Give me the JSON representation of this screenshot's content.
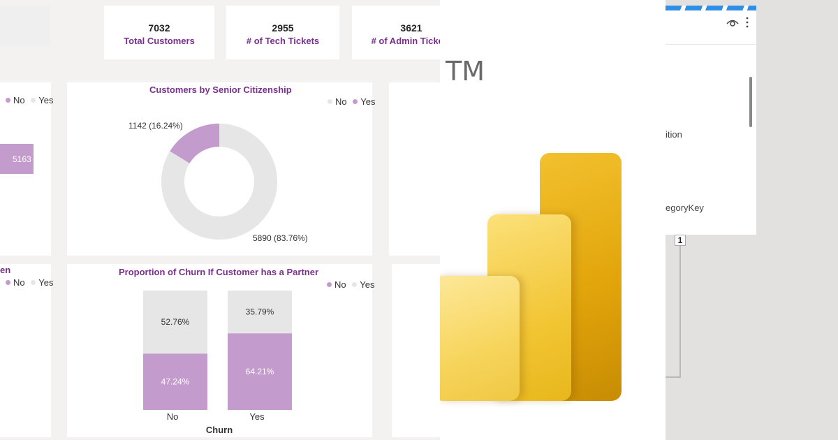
{
  "colors": {
    "yes": "#c39bcc",
    "no": "#e6e6e6",
    "accent": "#7b2f8e",
    "logo_dark": "#e0ad06",
    "logo_mid": "#f5c518",
    "logo_light": "#fbe17a"
  },
  "kpis": [
    {
      "value": "7032",
      "label": "Total Customers"
    },
    {
      "value": "2955",
      "label": "# of Tech Tickets"
    },
    {
      "value": "3621",
      "label": "# of Admin Tickets"
    }
  ],
  "left_top": {
    "legend": [
      {
        "label": "No",
        "color": "#c39bcc"
      },
      {
        "label": "Yes",
        "color": "#e6e6e6"
      }
    ],
    "bar_label": "5163"
  },
  "left_bottom": {
    "title_fragment": "en",
    "legend": [
      {
        "label": "No",
        "color": "#c39bcc"
      },
      {
        "label": "Yes",
        "color": "#e6e6e6"
      }
    ]
  },
  "senior": {
    "title": "Customers by Senior Citizenship",
    "legend": [
      {
        "label": "No",
        "color": "#e6e6e6"
      },
      {
        "label": "Yes",
        "color": "#c39bcc"
      }
    ],
    "chart_data": {
      "type": "pie",
      "title": "Customers by Senior Citizenship",
      "slices": [
        {
          "name": "Yes",
          "value": 1142,
          "percent": 16.24,
          "label": "1142 (16.24%)",
          "color": "#c39bcc"
        },
        {
          "name": "No",
          "value": 5890,
          "percent": 83.76,
          "label": "5890 (83.76%)",
          "color": "#e6e6e6"
        }
      ]
    }
  },
  "partner": {
    "title": "Proportion of Churn If Customer has a Partner",
    "legend": [
      {
        "label": "No",
        "color": "#c39bcc"
      },
      {
        "label": "Yes",
        "color": "#e6e6e6"
      }
    ],
    "chart_data": {
      "type": "bar",
      "title": "Proportion of Churn If Customer has a Partner",
      "xlabel": "Churn",
      "categories": [
        "No",
        "Yes"
      ],
      "series": [
        {
          "name": "No",
          "values": [
            47.24,
            64.21
          ],
          "labels": [
            "47.24%",
            "64.21%"
          ],
          "color": "#c39bcc"
        },
        {
          "name": "Yes",
          "values": [
            52.76,
            35.79
          ],
          "labels": [
            "52.76%",
            "35.79%"
          ],
          "color": "#e6e6e6"
        }
      ],
      "ylim": [
        0,
        100
      ]
    }
  },
  "logo_panel": {
    "tm": "TM"
  },
  "pane": {
    "items": [
      "ition",
      "egoryKey"
    ],
    "page_badge": "1",
    "icons": [
      "eye-icon",
      "more-vertical-icon"
    ]
  }
}
